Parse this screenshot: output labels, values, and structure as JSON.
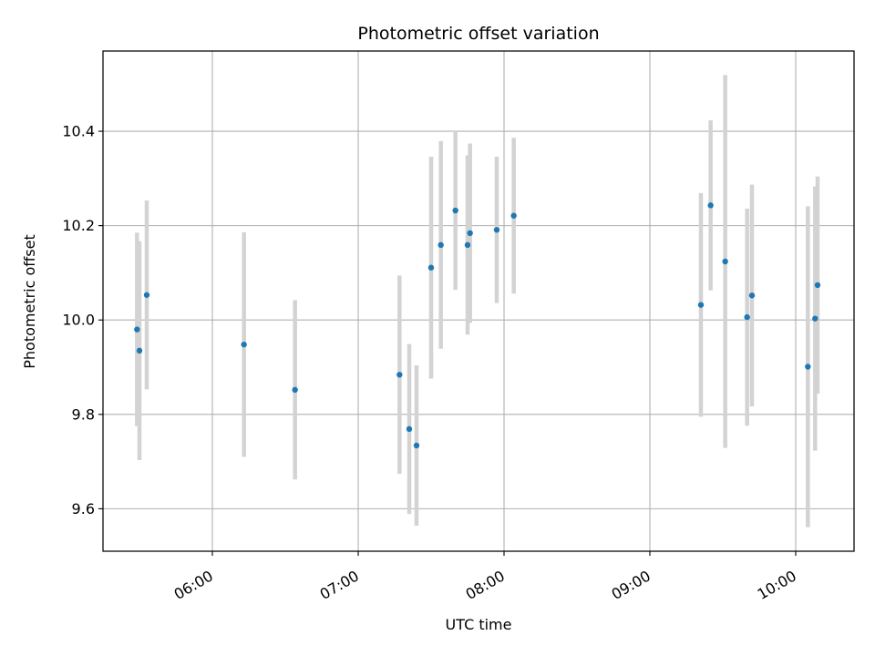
{
  "chart_data": {
    "type": "scatter",
    "title": "Photometric offset variation",
    "xlabel": "UTC time",
    "ylabel": "Photometric offset",
    "x_axis_kind": "time",
    "xlim": [
      "05:15",
      "10:24"
    ],
    "ylim": [
      9.51,
      10.57
    ],
    "xticks": [
      "06:00",
      "07:00",
      "08:00",
      "09:00",
      "10:00"
    ],
    "yticks": [
      9.6,
      9.8,
      10.0,
      10.2,
      10.4
    ],
    "ytick_labels": [
      "9.6",
      "9.8",
      "10.0",
      "10.2",
      "10.4"
    ],
    "grid": true,
    "legend": false,
    "colors": {
      "point": "#1f77b4",
      "errorbar": "#d3d3d3",
      "grid": "#b0b0b0",
      "axes": "#000000"
    },
    "points": [
      {
        "x": "05:29",
        "y": 9.98,
        "yerr": 0.205
      },
      {
        "x": "05:30",
        "y": 9.935,
        "yerr": 0.232
      },
      {
        "x": "05:33",
        "y": 10.053,
        "yerr": 0.2
      },
      {
        "x": "06:13",
        "y": 9.948,
        "yerr": 0.238
      },
      {
        "x": "06:34",
        "y": 9.852,
        "yerr": 0.19
      },
      {
        "x": "07:17",
        "y": 9.884,
        "yerr": 0.21
      },
      {
        "x": "07:21",
        "y": 9.769,
        "yerr": 0.18
      },
      {
        "x": "07:24",
        "y": 9.734,
        "yerr": 0.17
      },
      {
        "x": "07:30",
        "y": 10.111,
        "yerr": 0.235
      },
      {
        "x": "07:34",
        "y": 10.159,
        "yerr": 0.22
      },
      {
        "x": "07:40",
        "y": 10.232,
        "yerr": 0.168
      },
      {
        "x": "07:45",
        "y": 10.159,
        "yerr": 0.19
      },
      {
        "x": "07:46",
        "y": 10.184,
        "yerr": 0.19
      },
      {
        "x": "07:57",
        "y": 10.191,
        "yerr": 0.155
      },
      {
        "x": "08:04",
        "y": 10.221,
        "yerr": 0.165
      },
      {
        "x": "09:21",
        "y": 10.032,
        "yerr": 0.237
      },
      {
        "x": "09:25",
        "y": 10.243,
        "yerr": 0.18
      },
      {
        "x": "09:31",
        "y": 10.124,
        "yerr": 0.395
      },
      {
        "x": "09:40",
        "y": 10.006,
        "yerr": 0.23
      },
      {
        "x": "09:42",
        "y": 10.052,
        "yerr": 0.235
      },
      {
        "x": "10:05",
        "y": 9.901,
        "yerr": 0.34
      },
      {
        "x": "10:08",
        "y": 10.003,
        "yerr": 0.28
      },
      {
        "x": "10:09",
        "y": 10.074,
        "yerr": 0.23
      }
    ]
  }
}
